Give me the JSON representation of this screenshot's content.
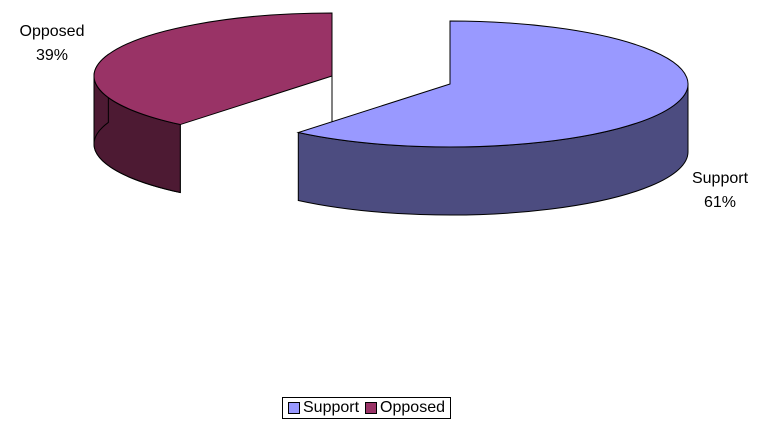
{
  "chart_data": {
    "type": "pie",
    "variant": "3d-exploded",
    "categories": [
      "Support",
      "Opposed"
    ],
    "values": [
      61,
      39
    ],
    "labels": [
      {
        "name": "Support",
        "percent": "61%"
      },
      {
        "name": "Opposed",
        "percent": "39%"
      }
    ],
    "colors": {
      "Support": {
        "top": "#9999ff",
        "side": "#4c4c80"
      },
      "Opposed": {
        "top": "#993366",
        "side": "#4d1a33"
      }
    },
    "legend_position": "bottom",
    "legend": [
      {
        "name": "Support",
        "color": "#9999ff"
      },
      {
        "name": "Opposed",
        "color": "#993366"
      }
    ]
  }
}
